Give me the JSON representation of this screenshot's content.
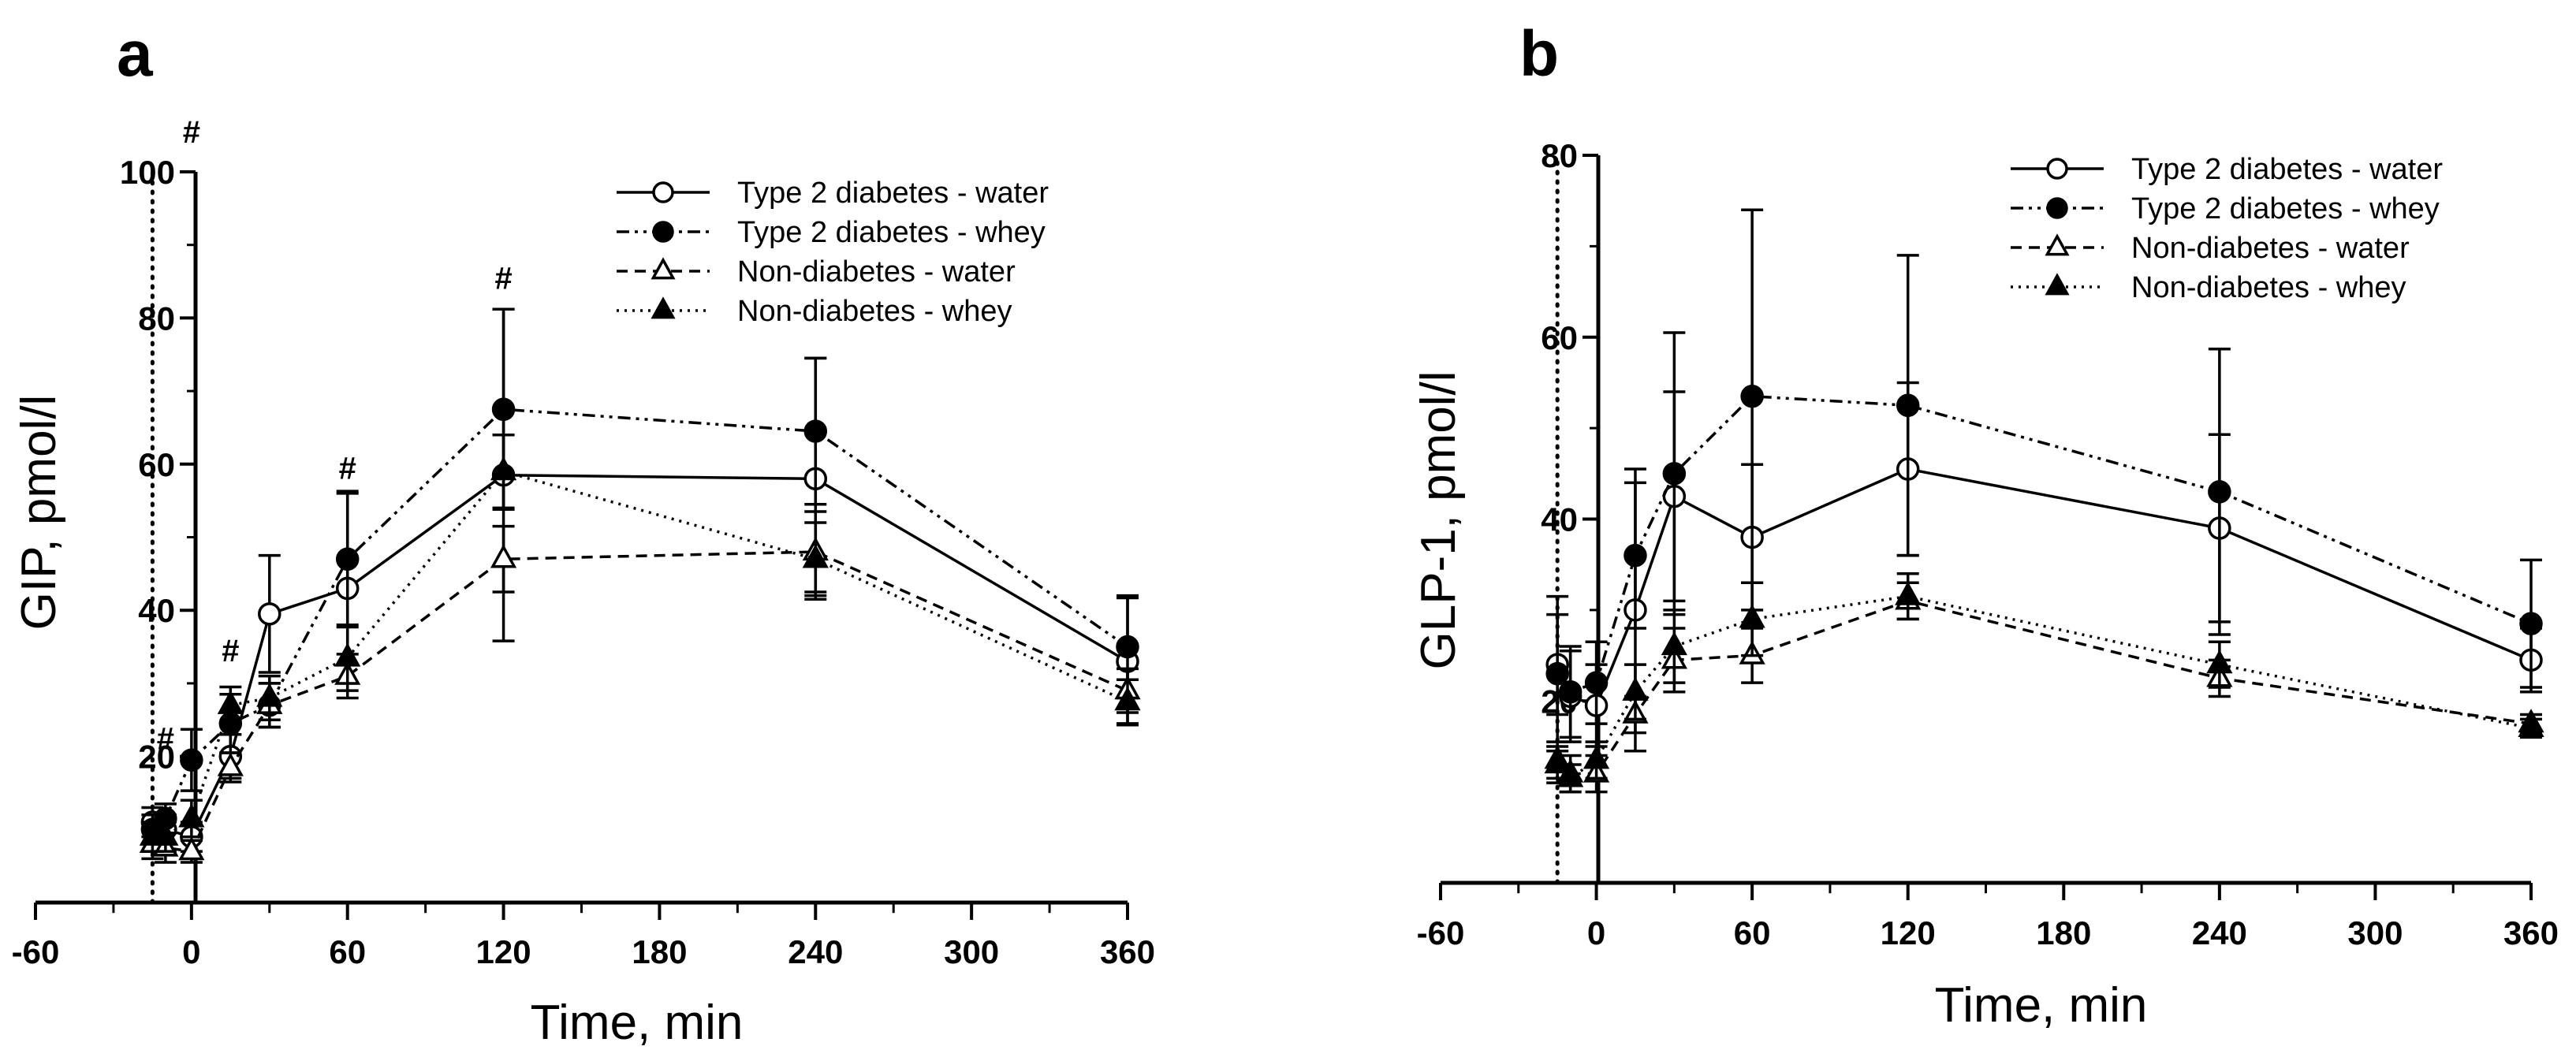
{
  "chart_data": [
    {
      "panel": "a",
      "type": "line",
      "xlabel": "Time, min",
      "ylabel": "GIP, pmol/l",
      "xlim": [
        -60,
        360
      ],
      "ylim": [
        0,
        100
      ],
      "x_ticks": [
        -60,
        0,
        60,
        120,
        180,
        240,
        300,
        360
      ],
      "x_tick_labels": [
        "-60",
        "0",
        "60",
        "120",
        "180",
        "240",
        "300",
        "360"
      ],
      "y_ticks": [
        20,
        40,
        60,
        80,
        100
      ],
      "y_tick_labels": [
        "20",
        "40",
        "60",
        "80",
        "100"
      ],
      "vertical_dotted_line_x": -15,
      "legend_position": "top-right",
      "series": [
        {
          "name": "Type 2 diabetes - water",
          "x": [
            -15,
            -10,
            0,
            15,
            30,
            60,
            120,
            240,
            360
          ],
          "y": [
            11,
            10,
            9,
            20,
            39.5,
            43,
            58.5,
            58,
            33
          ],
          "err": [
            2,
            2,
            2,
            3,
            8,
            13,
            22.7,
            16.5,
            8.7
          ]
        },
        {
          "name": "Type 2 diabetes - whey",
          "x": [
            -15,
            -10,
            0,
            15,
            30,
            60,
            120,
            240,
            360
          ],
          "y": [
            10,
            11.5,
            19.5,
            24.5,
            27,
            47,
            67.5,
            64.5,
            35
          ],
          "err": [
            2,
            2,
            4.2,
            4,
            3,
            9.3,
            13.7,
            10,
            7
          ]
        },
        {
          "name": "Non-diabetes - water",
          "x": [
            -15,
            -10,
            0,
            15,
            30,
            60,
            120,
            240,
            360
          ],
          "y": [
            8,
            7.5,
            7,
            18.5,
            27,
            31,
            47,
            48,
            29
          ],
          "err": [
            2,
            2,
            1.5,
            2,
            3,
            3,
            4.5,
            5.5,
            3
          ]
        },
        {
          "name": "Non-diabetes - whey",
          "x": [
            -15,
            -10,
            0,
            15,
            30,
            60,
            120,
            240,
            360
          ],
          "y": [
            9,
            9,
            11.5,
            27,
            28,
            33.5,
            59,
            47,
            27.5
          ],
          "err": [
            2,
            2,
            2.5,
            2.5,
            3,
            4.5,
            5,
            5,
            3
          ]
        }
      ],
      "annotations": [
        {
          "text": "#",
          "x": 0,
          "y": 104
        },
        {
          "text": "#",
          "x": -10,
          "y": 21
        },
        {
          "text": "#",
          "x": 15,
          "y": 33
        },
        {
          "text": "#",
          "x": 60,
          "y": 58
        },
        {
          "text": "#",
          "x": 120,
          "y": 84
        }
      ]
    },
    {
      "panel": "b",
      "type": "line",
      "xlabel": "Time, min",
      "ylabel": "GLP-1, pmol/l",
      "xlim": [
        -60,
        360
      ],
      "ylim": [
        0,
        80
      ],
      "x_ticks": [
        -60,
        0,
        60,
        120,
        180,
        240,
        300,
        360
      ],
      "x_tick_labels": [
        "-60",
        "0",
        "60",
        "120",
        "180",
        "240",
        "300",
        "360"
      ],
      "y_ticks": [
        20,
        40,
        60,
        80
      ],
      "y_tick_labels": [
        "20",
        "40",
        "60",
        "80"
      ],
      "vertical_dotted_line_x": -15,
      "legend_position": "top-right",
      "series": [
        {
          "name": "Type 2 diabetes - water",
          "x": [
            -15,
            -10,
            0,
            15,
            30,
            60,
            120,
            240,
            360
          ],
          "y": [
            24,
            20.5,
            19.5,
            30,
            42.5,
            38,
            45.5,
            39,
            24.5
          ],
          "err": [
            5.5,
            5,
            4.5,
            15.5,
            11.5,
            8,
            9.5,
            10.3,
            3.5
          ]
        },
        {
          "name": "Type 2 diabetes - whey",
          "x": [
            -15,
            -10,
            0,
            15,
            30,
            60,
            120,
            240,
            360
          ],
          "y": [
            23,
            21,
            22,
            36,
            45,
            53.5,
            52.5,
            43,
            28.5
          ],
          "err": [
            8.5,
            5,
            4.5,
            8,
            15.5,
            20.5,
            16.5,
            15.7,
            7
          ]
        },
        {
          "name": "Non-diabetes - water",
          "x": [
            -15,
            -10,
            0,
            15,
            30,
            60,
            120,
            240,
            360
          ],
          "y": [
            13.5,
            12,
            12,
            18.5,
            24.5,
            25,
            31,
            22.5,
            17.5
          ],
          "err": [
            2,
            2,
            2,
            2,
            3.5,
            3,
            2,
            2,
            1
          ]
        },
        {
          "name": "Non-diabetes - whey",
          "x": [
            -15,
            -10,
            0,
            15,
            30,
            60,
            120,
            240,
            360
          ],
          "y": [
            13,
            11.5,
            13.5,
            21,
            26,
            29,
            31.5,
            24,
            17
          ],
          "err": [
            2,
            1.5,
            2,
            3,
            4,
            4,
            2.5,
            2.5,
            1
          ]
        }
      ],
      "annotations": []
    }
  ],
  "legend": {
    "entries": [
      "Type 2 diabetes - water",
      "Type 2 diabetes - whey",
      "Non-diabetes - water",
      "Non-diabetes - whey"
    ]
  },
  "panels": {
    "a": {
      "letter": "a"
    },
    "b": {
      "letter": "b"
    }
  },
  "colors": {
    "ink": "#000000",
    "background": "#ffffff"
  }
}
